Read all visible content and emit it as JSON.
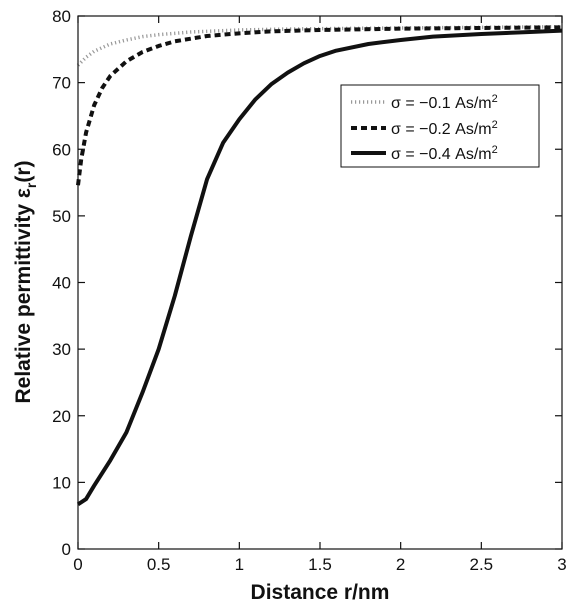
{
  "chart_data": {
    "type": "line",
    "xlabel": "Distance r/nm",
    "ylabel": "Relative permittivity ε_r(r)",
    "ylabel_main": "Relative permittivity ε",
    "ylabel_sub": "r",
    "ylabel_tail": "(r)",
    "xlim": [
      0,
      3
    ],
    "ylim": [
      0,
      80
    ],
    "xticks": [
      0,
      0.5,
      1,
      1.5,
      2,
      2.5,
      3
    ],
    "xtick_labels": [
      "0",
      "0.5",
      "1",
      "1.5",
      "2",
      "2.5",
      "3"
    ],
    "yticks": [
      0,
      10,
      20,
      30,
      40,
      50,
      60,
      70,
      80
    ],
    "ytick_labels": [
      "0",
      "10",
      "20",
      "30",
      "40",
      "50",
      "60",
      "70",
      "80"
    ],
    "grid": false,
    "legend_position": "top-right",
    "series": [
      {
        "name": "σ = −0.1 As/m²",
        "label_main": "σ = −0.1 As/m",
        "label_sup": "2",
        "color": "#999999",
        "style": "dotted",
        "x": [
          0,
          0.05,
          0.1,
          0.2,
          0.3,
          0.4,
          0.5,
          0.6,
          0.7,
          0.8,
          1.0,
          1.2,
          1.5,
          2.0,
          2.5,
          3.0
        ],
        "y": [
          72.6,
          73.8,
          74.7,
          75.8,
          76.4,
          76.9,
          77.2,
          77.4,
          77.6,
          77.7,
          77.9,
          78.0,
          78.1,
          78.2,
          78.3,
          78.4
        ]
      },
      {
        "name": "σ = −0.2 As/m²",
        "label_main": "σ = −0.2 As/m",
        "label_sup": "2",
        "color": "#111111",
        "style": "dashed",
        "x": [
          0,
          0.02,
          0.05,
          0.1,
          0.15,
          0.2,
          0.3,
          0.4,
          0.5,
          0.6,
          0.7,
          0.8,
          1.0,
          1.2,
          1.5,
          2.0,
          2.5,
          3.0
        ],
        "y": [
          54.6,
          58.5,
          62.5,
          66.6,
          69.2,
          71.0,
          73.2,
          74.6,
          75.5,
          76.2,
          76.6,
          77.0,
          77.4,
          77.7,
          77.9,
          78.1,
          78.2,
          78.3
        ]
      },
      {
        "name": "σ = −0.4 As/m²",
        "label_main": "σ = −0.4 As/m",
        "label_sup": "2",
        "color": "#111111",
        "style": "solid",
        "x": [
          0,
          0.05,
          0.1,
          0.2,
          0.3,
          0.4,
          0.5,
          0.6,
          0.7,
          0.8,
          0.9,
          1.0,
          1.1,
          1.2,
          1.3,
          1.4,
          1.5,
          1.6,
          1.8,
          2.0,
          2.2,
          2.5,
          2.8,
          3.0
        ],
        "y": [
          6.7,
          7.5,
          9.5,
          13.3,
          17.5,
          23.5,
          30.0,
          38.0,
          47.0,
          55.5,
          61.0,
          64.5,
          67.5,
          69.8,
          71.5,
          72.9,
          74.0,
          74.8,
          75.8,
          76.4,
          76.9,
          77.3,
          77.6,
          77.8
        ]
      }
    ]
  }
}
